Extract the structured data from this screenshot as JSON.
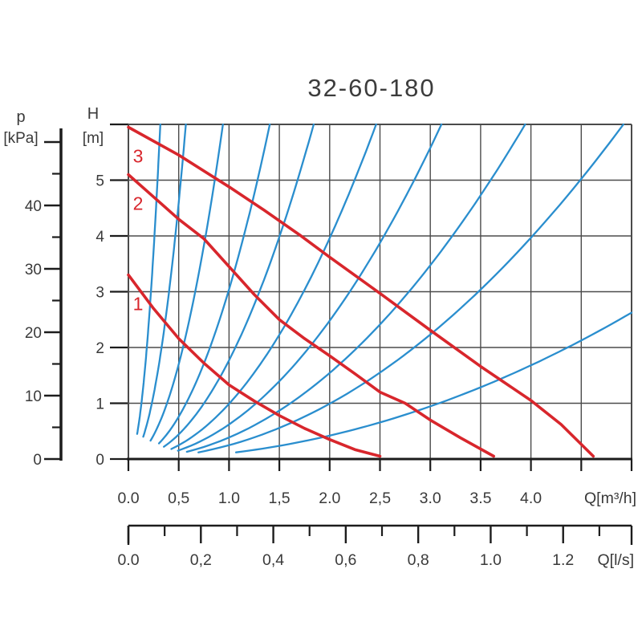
{
  "colors": {
    "pump_curve_red": "#d8262c",
    "system_curve_blue": "#2a8ece",
    "grid": "#4b4b4b",
    "axis_black": "#1c1c1c",
    "text": "#3a3a3a"
  },
  "chart_data": {
    "type": "line",
    "title": "32-60-180",
    "grid": true,
    "x_axis_primary": {
      "unit_label": "Q[m³/h]",
      "range": [
        0,
        5.0
      ],
      "gridline_step": 0.5,
      "tick_values": [
        0,
        0.5,
        1.0,
        1.5,
        2.0,
        2.5,
        3.0,
        3.5,
        4.0
      ],
      "tick_labels": [
        "0.0",
        "0,5",
        "1.0",
        "1,5",
        "2.0",
        "2,5",
        "3.0",
        "3.5",
        "4.0"
      ]
    },
    "x_axis_secondary": {
      "unit_label": "Q[l/s]",
      "range": [
        0,
        1.39
      ],
      "m3h_per_ls": 3.6,
      "major_tick_values": [
        0,
        0.2,
        0.4,
        0.6,
        0.8,
        1.0,
        1.2
      ],
      "major_tick_labels": [
        "0.0",
        "0,2",
        "0,4",
        "0,6",
        "0,8",
        "1.0",
        "1.2"
      ],
      "minor_tick_values": [
        0.1,
        0.3,
        0.5,
        0.7,
        0.9,
        1.1,
        1.3
      ]
    },
    "y_axis_head": {
      "symbol": "H",
      "unit_label": "[m]",
      "range": [
        0,
        6
      ],
      "tick_values": [
        0,
        1,
        2,
        3,
        4,
        5
      ],
      "tick_labels": [
        "0",
        "1",
        "2",
        "3",
        "4",
        "5"
      ],
      "unlabeled_tick_values": [
        6
      ]
    },
    "y_axis_pressure": {
      "symbol": "p",
      "unit_label": "[kPa]",
      "range": [
        0,
        50
      ],
      "major_tick_values": [
        0,
        10,
        20,
        30,
        40,
        50
      ],
      "tick_labels": [
        "0",
        "10",
        "20",
        "30",
        "40"
      ],
      "minor_tick_values": [
        5,
        15,
        25,
        35,
        45
      ]
    },
    "pump_curves": [
      {
        "label": "1",
        "points": [
          [
            0,
            3.3
          ],
          [
            0.25,
            2.7
          ],
          [
            0.5,
            2.16
          ],
          [
            0.75,
            1.72
          ],
          [
            1.0,
            1.33
          ],
          [
            1.25,
            1.04
          ],
          [
            1.5,
            0.78
          ],
          [
            1.75,
            0.55
          ],
          [
            2.0,
            0.35
          ],
          [
            2.25,
            0.17
          ],
          [
            2.5,
            0.05
          ]
        ]
      },
      {
        "label": "2",
        "points": [
          [
            0,
            5.1
          ],
          [
            0.25,
            4.7
          ],
          [
            0.5,
            4.3
          ],
          [
            0.75,
            3.95
          ],
          [
            1.0,
            3.45
          ],
          [
            1.25,
            2.95
          ],
          [
            1.5,
            2.5
          ],
          [
            1.75,
            2.16
          ],
          [
            2.0,
            1.85
          ],
          [
            2.25,
            1.53
          ],
          [
            2.5,
            1.2
          ],
          [
            2.75,
            1.0
          ],
          [
            3.0,
            0.7
          ],
          [
            3.3,
            0.38
          ],
          [
            3.63,
            0.05
          ]
        ]
      },
      {
        "label": "3",
        "points": [
          [
            0,
            5.95
          ],
          [
            0.5,
            5.45
          ],
          [
            1.0,
            4.88
          ],
          [
            1.35,
            4.46
          ],
          [
            1.7,
            4.02
          ],
          [
            2.0,
            3.62
          ],
          [
            2.5,
            2.97
          ],
          [
            3.0,
            2.31
          ],
          [
            3.5,
            1.66
          ],
          [
            4.0,
            1.05
          ],
          [
            4.3,
            0.62
          ],
          [
            4.62,
            0.05
          ]
        ]
      }
    ],
    "system_curves": {
      "model": "H = k * Q^2",
      "k_values": [
        59.7,
        18.4,
        6.8,
        3.04,
        1.77,
        0.99,
        0.62,
        0.386,
        0.248,
        0.105
      ],
      "start_heads": [
        0.45,
        0.4,
        0.33,
        0.28,
        0.22,
        0.18,
        0.15,
        0.13,
        0.12,
        0.12
      ]
    }
  }
}
